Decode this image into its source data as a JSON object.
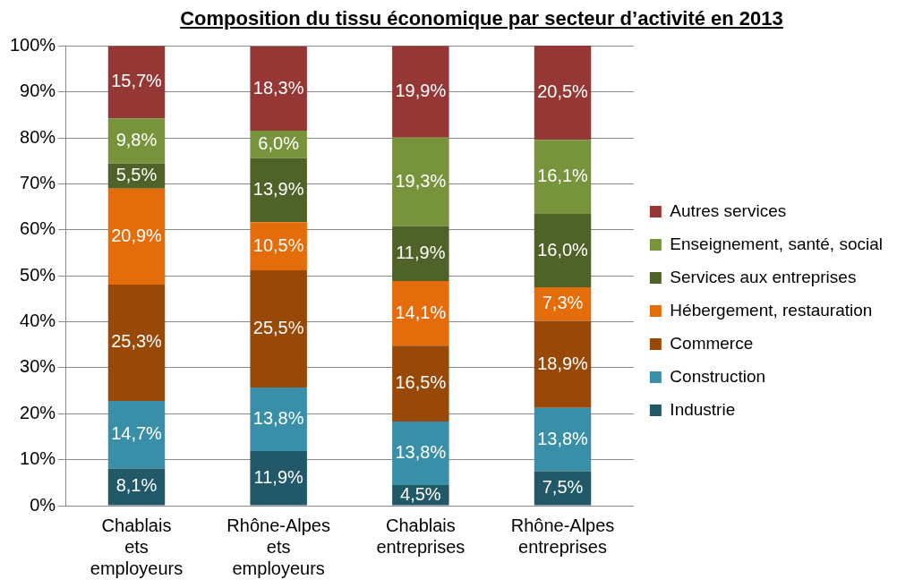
{
  "chart_data": {
    "type": "bar",
    "title": "Composition du tissu économique par secteur d’activité en 2013",
    "categories": [
      "Chablais ets employeurs",
      "Rhône-Alpes ets employeurs",
      "Chablais entreprises",
      "Rhône-Alpes entreprises"
    ],
    "stacked": true,
    "series": [
      {
        "name": "Industrie",
        "color": "#215968",
        "values": [
          8.1,
          11.9,
          4.5,
          7.5
        ],
        "value_labels": [
          "8,1%",
          "11,9%",
          "4,5%",
          "7,5%"
        ]
      },
      {
        "name": "Construction",
        "color": "#3a8fa8",
        "values": [
          14.7,
          13.8,
          13.8,
          13.8
        ],
        "value_labels": [
          "14,7%",
          "13,8%",
          "13,8%",
          "13,8%"
        ]
      },
      {
        "name": "Commerce",
        "color": "#984807",
        "values": [
          25.3,
          25.5,
          16.5,
          18.9
        ],
        "value_labels": [
          "25,3%",
          "25,5%",
          "16,5%",
          "18,9%"
        ]
      },
      {
        "name": "Hébergement, restauration",
        "color": "#e46c0a",
        "values": [
          20.9,
          10.5,
          14.1,
          7.3
        ],
        "value_labels": [
          "20,9%",
          "10,5%",
          "14,1%",
          "7,3%"
        ]
      },
      {
        "name": "Services aux entreprises",
        "color": "#4f6228",
        "values": [
          5.5,
          13.9,
          11.9,
          16.0
        ],
        "value_labels": [
          "5,5%",
          "13,9%",
          "11,9%",
          "16,0%"
        ]
      },
      {
        "name": "Enseignement, santé, social",
        "color": "#77933c",
        "values": [
          9.8,
          6.0,
          19.3,
          16.1
        ],
        "value_labels": [
          "9,8%",
          "6,0%",
          "19,3%",
          "16,1%"
        ]
      },
      {
        "name": "Autres services",
        "color": "#953735",
        "values": [
          15.7,
          18.3,
          19.9,
          20.5
        ],
        "value_labels": [
          "15,7%",
          "18,3%",
          "19,9%",
          "20,5%"
        ]
      }
    ],
    "ylim": [
      0,
      100.1
    ],
    "yticks": [
      {
        "value": 0,
        "label": "0%"
      },
      {
        "value": 10,
        "label": "10%"
      },
      {
        "value": 20,
        "label": "20%"
      },
      {
        "value": 30,
        "label": "30%"
      },
      {
        "value": 40,
        "label": "40%"
      },
      {
        "value": 50,
        "label": "50%"
      },
      {
        "value": 60,
        "label": "60%"
      },
      {
        "value": 70,
        "label": "70%"
      },
      {
        "value": 80,
        "label": "80%"
      },
      {
        "value": 90,
        "label": "90%"
      },
      {
        "value": 100,
        "label": "100%"
      }
    ],
    "grid": "y",
    "legend": "right"
  }
}
